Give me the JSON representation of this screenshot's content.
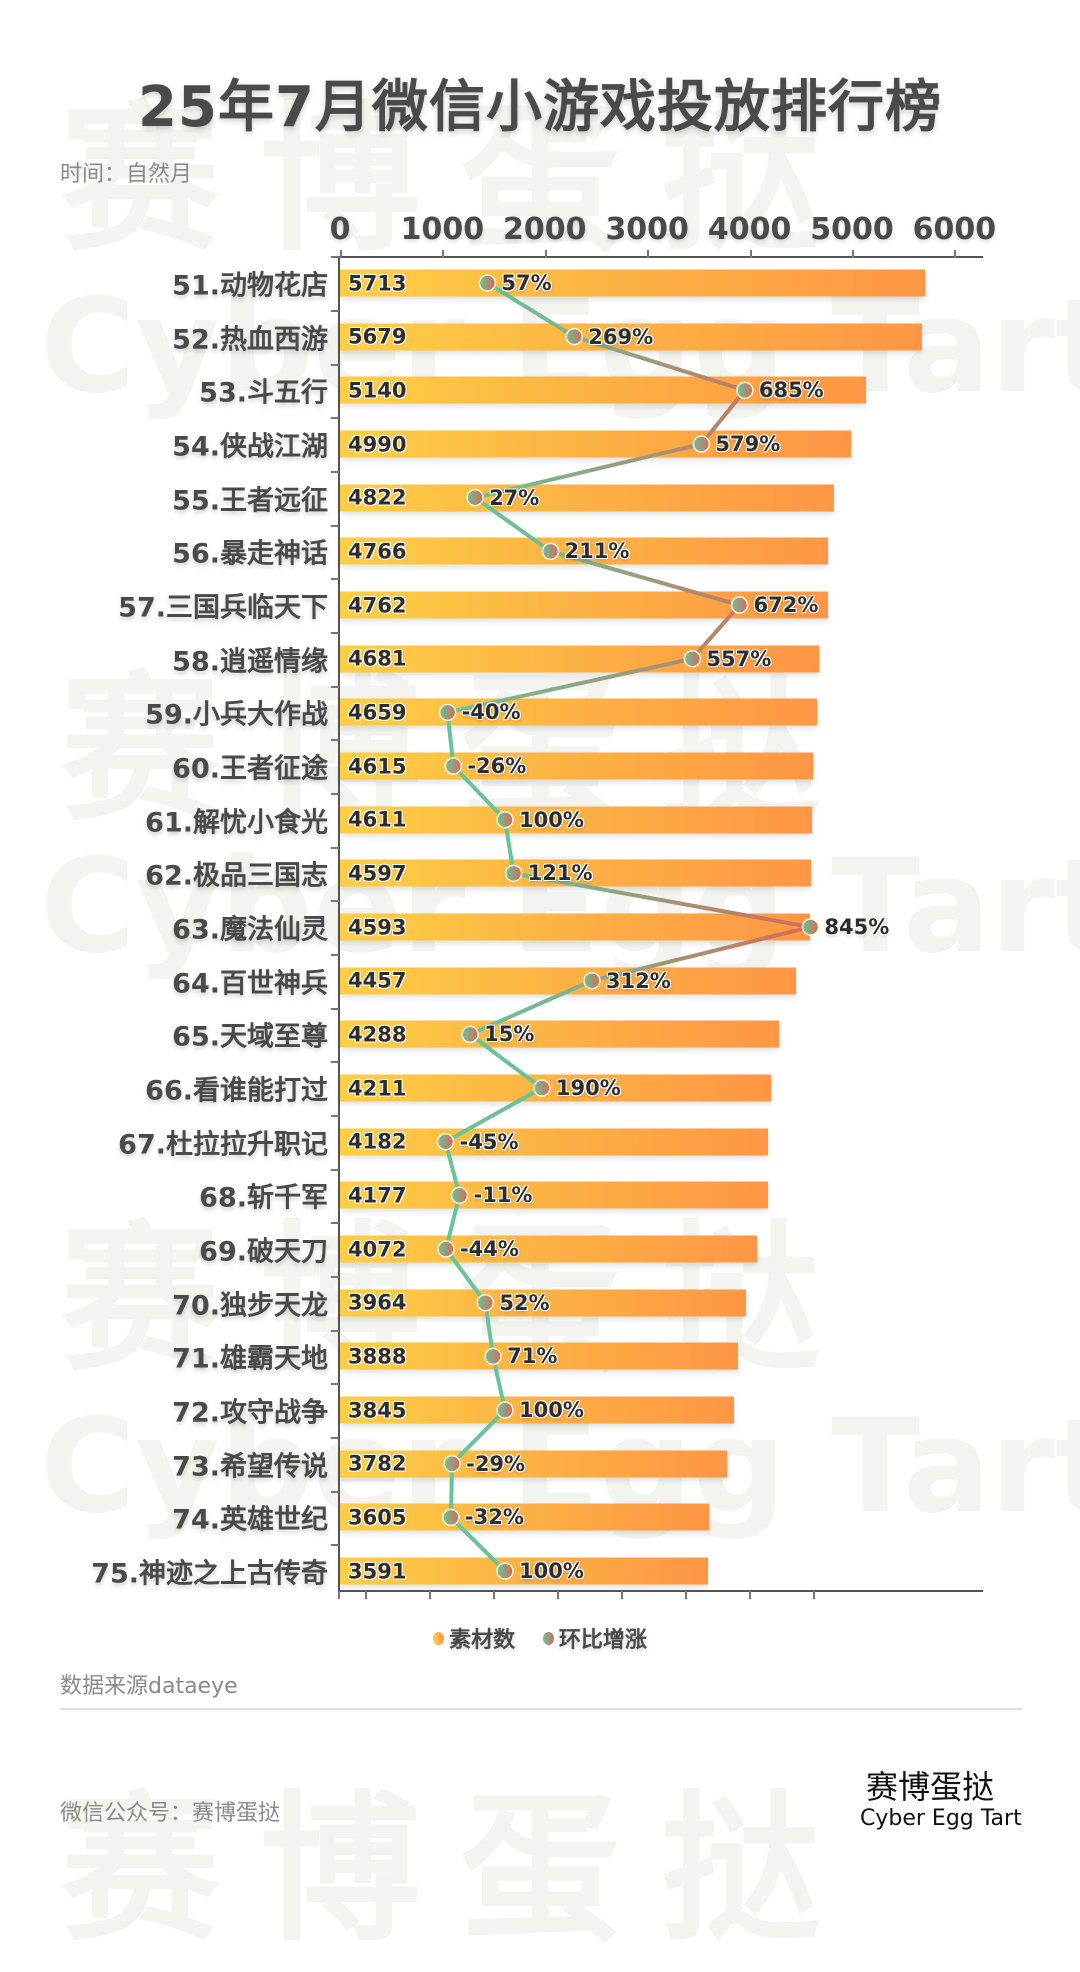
{
  "header": {
    "title": "25年7月微信小游戏投放排行榜",
    "subtitle": "时间：自然月"
  },
  "axis": {
    "ticks": [
      "0",
      "1000",
      "2000",
      "3000",
      "4000",
      "5000",
      "6000"
    ]
  },
  "legend": {
    "bar_label": "素材数",
    "line_label": "环比增涨"
  },
  "footer": {
    "source": "数据来源dataeye",
    "wechat": "微信公众号：赛博蛋挞",
    "brand_cn": "赛博蛋挞",
    "brand_en": "Cyber Egg Tart"
  },
  "watermark": {
    "cn": "赛博蛋挞",
    "en": "Cyber Egg Tart"
  },
  "colors": {
    "bar_start": "#fdcf45",
    "bar_end": "#ff9645",
    "line_low": "#68c39b",
    "line_high": "#d86a55",
    "title": "#4a4a4a"
  },
  "rows": [
    {
      "label": "51.动物花店",
      "value_text": "5713",
      "pct_text": "57%"
    },
    {
      "label": "52.热血西游",
      "value_text": "5679",
      "pct_text": "269%"
    },
    {
      "label": "53.斗五行",
      "value_text": "5140",
      "pct_text": "685%"
    },
    {
      "label": "54.侠战江湖",
      "value_text": "4990",
      "pct_text": "579%"
    },
    {
      "label": "55.王者远征",
      "value_text": "4822",
      "pct_text": "27%"
    },
    {
      "label": "56.暴走神话",
      "value_text": "4766",
      "pct_text": "211%"
    },
    {
      "label": "57.三国兵临天下",
      "value_text": "4762",
      "pct_text": "672%"
    },
    {
      "label": "58.逍遥情缘",
      "value_text": "4681",
      "pct_text": "557%"
    },
    {
      "label": "59.小兵大作战",
      "value_text": "4659",
      "pct_text": "-40%"
    },
    {
      "label": "60.王者征途",
      "value_text": "4615",
      "pct_text": "-26%"
    },
    {
      "label": "61.解忧小食光",
      "value_text": "4611",
      "pct_text": "100%"
    },
    {
      "label": "62.极品三国志",
      "value_text": "4597",
      "pct_text": "121%"
    },
    {
      "label": "63.魔法仙灵",
      "value_text": "4593",
      "pct_text": "845%"
    },
    {
      "label": "64.百世神兵",
      "value_text": "4457",
      "pct_text": "312%"
    },
    {
      "label": "65.天域至尊",
      "value_text": "4288",
      "pct_text": "15%"
    },
    {
      "label": "66.看谁能打过",
      "value_text": "4211",
      "pct_text": "190%"
    },
    {
      "label": "67.杜拉拉升职记",
      "value_text": "4182",
      "pct_text": "-45%"
    },
    {
      "label": "68.斩千军",
      "value_text": "4177",
      "pct_text": "-11%"
    },
    {
      "label": "69.破天刀",
      "value_text": "4072",
      "pct_text": "-44%"
    },
    {
      "label": "70.独步天龙",
      "value_text": "3964",
      "pct_text": "52%"
    },
    {
      "label": "71.雄霸天地",
      "value_text": "3888",
      "pct_text": "71%"
    },
    {
      "label": "72.攻守战争",
      "value_text": "3845",
      "pct_text": "100%"
    },
    {
      "label": "73.希望传说",
      "value_text": "3782",
      "pct_text": "-29%"
    },
    {
      "label": "74.英雄世纪",
      "value_text": "3605",
      "pct_text": "-32%"
    },
    {
      "label": "75.神迹之上古传奇",
      "value_text": "3591",
      "pct_text": "100%"
    }
  ],
  "chart_data": {
    "type": "bar",
    "title": "25年7月微信小游戏投放排行榜",
    "subtitle": "时间：自然月",
    "orientation": "horizontal",
    "xlabel": "",
    "ylabel": "",
    "xlim": [
      0,
      6000
    ],
    "x_ticks": [
      0,
      1000,
      2000,
      3000,
      4000,
      5000,
      6000
    ],
    "axis_position": "top",
    "grid": false,
    "legend_position": "bottom",
    "categories": [
      "51.动物花店",
      "52.热血西游",
      "53.斗五行",
      "54.侠战江湖",
      "55.王者远征",
      "56.暴走神话",
      "57.三国兵临天下",
      "58.逍遥情缘",
      "59.小兵大作战",
      "60.王者征途",
      "61.解忧小食光",
      "62.极品三国志",
      "63.魔法仙灵",
      "64.百世神兵",
      "65.天域至尊",
      "66.看谁能打过",
      "67.杜拉拉升职记",
      "68.斩千军",
      "69.破天刀",
      "70.独步天龙",
      "71.雄霸天地",
      "72.攻守战争",
      "73.希望传说",
      "74.英雄世纪",
      "75.神迹之上古传奇"
    ],
    "series": [
      {
        "name": "素材数",
        "type": "bar",
        "values": [
          5713,
          5679,
          5140,
          4990,
          4822,
          4766,
          4762,
          4681,
          4659,
          4615,
          4611,
          4597,
          4593,
          4457,
          4288,
          4211,
          4182,
          4177,
          4072,
          3964,
          3888,
          3845,
          3782,
          3605,
          3591
        ]
      },
      {
        "name": "环比增涨",
        "type": "line",
        "unit": "%",
        "values": [
          57,
          269,
          685,
          579,
          27,
          211,
          672,
          557,
          -40,
          -26,
          100,
          121,
          845,
          312,
          15,
          190,
          -45,
          -11,
          -44,
          52,
          71,
          100,
          -29,
          -32,
          100
        ]
      }
    ],
    "annotations": [
      "数据来源dataeye"
    ]
  }
}
